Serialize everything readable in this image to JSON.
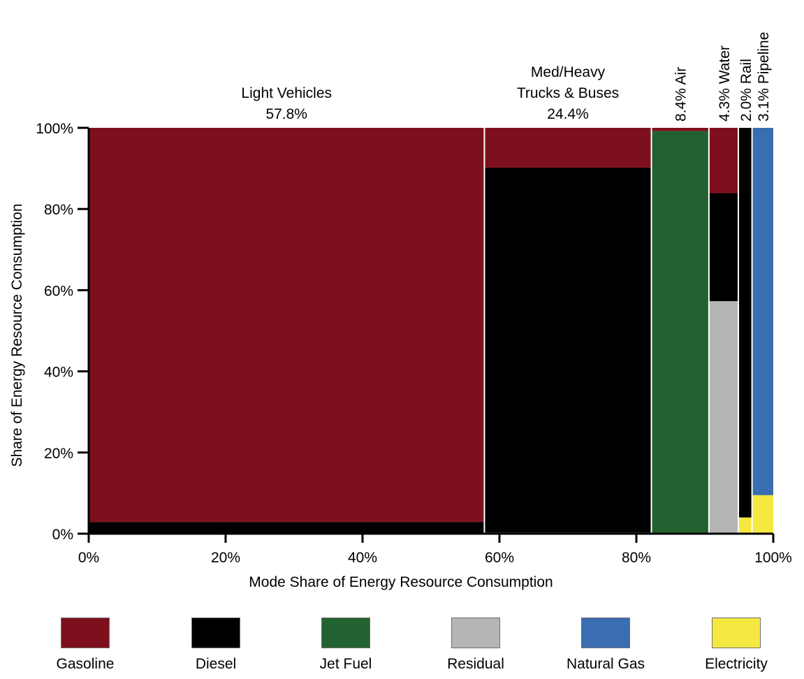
{
  "chart_data": {
    "type": "marimekko",
    "xlabel": "Mode Share of Energy Resource Consumption",
    "ylabel": "Share of Energy Resource Consumption",
    "xlim": [
      0,
      100
    ],
    "ylim": [
      0,
      100
    ],
    "xticks": [
      "0%",
      "20%",
      "40%",
      "60%",
      "80%",
      "100%"
    ],
    "yticks": [
      "0%",
      "20%",
      "40%",
      "60%",
      "80%",
      "100%"
    ],
    "fuels": [
      {
        "name": "Gasoline",
        "color": "#7e101e"
      },
      {
        "name": "Diesel",
        "color": "#000000"
      },
      {
        "name": "Jet Fuel",
        "color": "#226230"
      },
      {
        "name": "Residual",
        "color": "#b5b5b5"
      },
      {
        "name": "Natural Gas",
        "color": "#3a6db1"
      },
      {
        "name": "Electricity",
        "color": "#f5e841"
      }
    ],
    "modes": [
      {
        "label": [
          "Light Vehicles",
          "57.8%"
        ],
        "label_style": "horizontal",
        "share": 57.8,
        "fuel_shares": {
          "Diesel": 2.9,
          "Gasoline": 97.1
        }
      },
      {
        "label": [
          "Med/Heavy",
          "Trucks & Buses",
          "24.4%"
        ],
        "label_style": "horizontal",
        "share": 24.4,
        "fuel_shares": {
          "Natural Gas": 0.3,
          "Diesel": 89.9,
          "Gasoline": 9.8
        }
      },
      {
        "label": [
          "8.4% Air"
        ],
        "label_style": "vertical",
        "share": 8.4,
        "fuel_shares": {
          "Jet Fuel": 99.2,
          "Gasoline": 0.8
        }
      },
      {
        "label": [
          "4.3% Water"
        ],
        "label_style": "vertical",
        "share": 4.3,
        "fuel_shares": {
          "Residual": 57.3,
          "Diesel": 26.6,
          "Gasoline": 16.1
        }
      },
      {
        "label": [
          "2.0% Rail"
        ],
        "label_style": "vertical",
        "share": 2.0,
        "fuel_shares": {
          "Electricity": 4.0,
          "Diesel": 96.0
        }
      },
      {
        "label": [
          "3.1% Pipeline"
        ],
        "label_style": "vertical",
        "share": 3.1,
        "fuel_shares": {
          "Electricity": 9.5,
          "Natural Gas": 90.5
        }
      }
    ]
  }
}
